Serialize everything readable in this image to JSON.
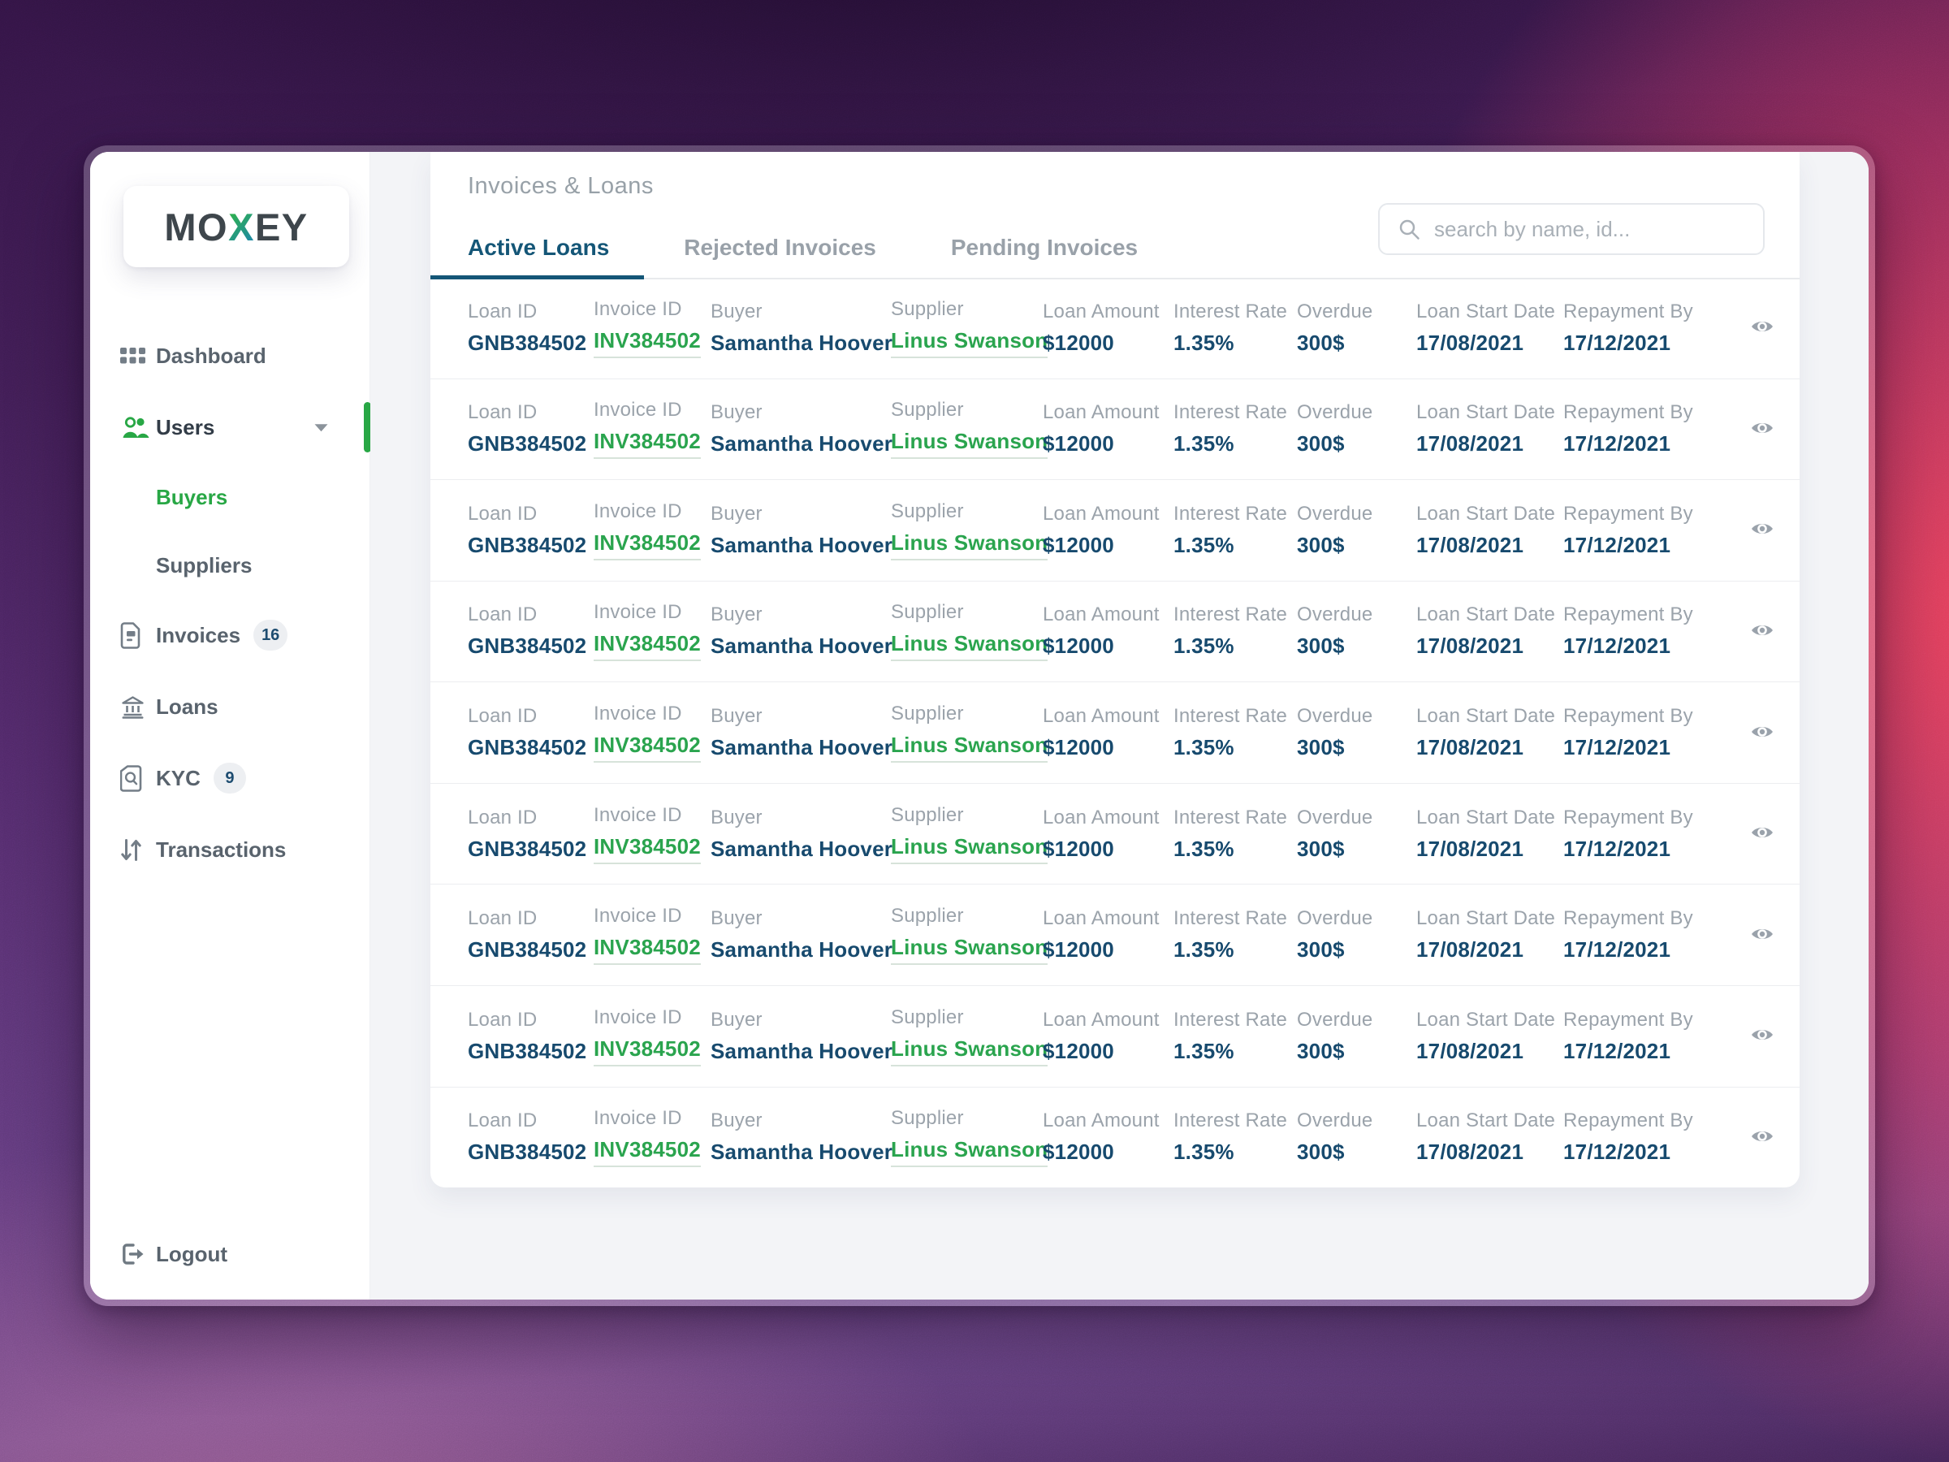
{
  "app": {
    "logo": {
      "part1": "MO",
      "accent": "X",
      "part2": "EY"
    }
  },
  "sidebar": {
    "items": [
      {
        "label": "Dashboard",
        "icon": "grid-icon",
        "active": false
      },
      {
        "label": "Users",
        "icon": "users-icon",
        "active": true,
        "expanded": true
      },
      {
        "label": "Buyers",
        "child_of": "Users",
        "active": true
      },
      {
        "label": "Suppliers",
        "child_of": "Users",
        "active": false
      },
      {
        "label": "Invoices",
        "icon": "invoice-icon",
        "badge": "16",
        "active": false
      },
      {
        "label": "Loans",
        "icon": "bank-icon",
        "active": false
      },
      {
        "label": "KYC",
        "icon": "document-search-icon",
        "badge": "9",
        "active": false
      },
      {
        "label": "Transactions",
        "icon": "transfer-arrows-icon",
        "active": false
      }
    ],
    "logout_label": "Logout"
  },
  "main": {
    "title": "Invoices & Loans",
    "tabs": [
      {
        "label": "Active Loans",
        "active": true
      },
      {
        "label": "Rejected Invoices",
        "active": false
      },
      {
        "label": "Pending Invoices",
        "active": false
      }
    ],
    "search": {
      "placeholder": "search by name, id..."
    }
  },
  "table": {
    "columns": [
      {
        "key": "loan_id",
        "label": "Loan ID",
        "style": "navy"
      },
      {
        "key": "invoice_id",
        "label": "Invoice ID",
        "style": "link"
      },
      {
        "key": "buyer",
        "label": "Buyer",
        "style": "navy"
      },
      {
        "key": "supplier",
        "label": "Supplier",
        "style": "link"
      },
      {
        "key": "loan_amount",
        "label": "Loan Amount",
        "style": "navy"
      },
      {
        "key": "interest_rate",
        "label": "Interest Rate",
        "style": "navy"
      },
      {
        "key": "overdue",
        "label": "Overdue",
        "style": "navy"
      },
      {
        "key": "loan_start_date",
        "label": "Loan Start Date",
        "style": "navy"
      },
      {
        "key": "repayment_by",
        "label": "Repayment By",
        "style": "navy"
      }
    ],
    "rows": [
      {
        "loan_id": "GNB384502",
        "invoice_id": "INV384502",
        "buyer": "Samantha Hoover",
        "supplier": "Linus Swanson",
        "loan_amount": "$12000",
        "interest_rate": "1.35%",
        "overdue": "300$",
        "loan_start_date": "17/08/2021",
        "repayment_by": "17/12/2021"
      },
      {
        "loan_id": "GNB384502",
        "invoice_id": "INV384502",
        "buyer": "Samantha Hoover",
        "supplier": "Linus Swanson",
        "loan_amount": "$12000",
        "interest_rate": "1.35%",
        "overdue": "300$",
        "loan_start_date": "17/08/2021",
        "repayment_by": "17/12/2021"
      },
      {
        "loan_id": "GNB384502",
        "invoice_id": "INV384502",
        "buyer": "Samantha Hoover",
        "supplier": "Linus Swanson",
        "loan_amount": "$12000",
        "interest_rate": "1.35%",
        "overdue": "300$",
        "loan_start_date": "17/08/2021",
        "repayment_by": "17/12/2021"
      },
      {
        "loan_id": "GNB384502",
        "invoice_id": "INV384502",
        "buyer": "Samantha Hoover",
        "supplier": "Linus Swanson",
        "loan_amount": "$12000",
        "interest_rate": "1.35%",
        "overdue": "300$",
        "loan_start_date": "17/08/2021",
        "repayment_by": "17/12/2021"
      },
      {
        "loan_id": "GNB384502",
        "invoice_id": "INV384502",
        "buyer": "Samantha Hoover",
        "supplier": "Linus Swanson",
        "loan_amount": "$12000",
        "interest_rate": "1.35%",
        "overdue": "300$",
        "loan_start_date": "17/08/2021",
        "repayment_by": "17/12/2021"
      },
      {
        "loan_id": "GNB384502",
        "invoice_id": "INV384502",
        "buyer": "Samantha Hoover",
        "supplier": "Linus Swanson",
        "loan_amount": "$12000",
        "interest_rate": "1.35%",
        "overdue": "300$",
        "loan_start_date": "17/08/2021",
        "repayment_by": "17/12/2021"
      },
      {
        "loan_id": "GNB384502",
        "invoice_id": "INV384502",
        "buyer": "Samantha Hoover",
        "supplier": "Linus Swanson",
        "loan_amount": "$12000",
        "interest_rate": "1.35%",
        "overdue": "300$",
        "loan_start_date": "17/08/2021",
        "repayment_by": "17/12/2021"
      },
      {
        "loan_id": "GNB384502",
        "invoice_id": "INV384502",
        "buyer": "Samantha Hoover",
        "supplier": "Linus Swanson",
        "loan_amount": "$12000",
        "interest_rate": "1.35%",
        "overdue": "300$",
        "loan_start_date": "17/08/2021",
        "repayment_by": "17/12/2021"
      },
      {
        "loan_id": "GNB384502",
        "invoice_id": "INV384502",
        "buyer": "Samantha Hoover",
        "supplier": "Linus Swanson",
        "loan_amount": "$12000",
        "interest_rate": "1.35%",
        "overdue": "300$",
        "loan_start_date": "17/08/2021",
        "repayment_by": "17/12/2021"
      }
    ]
  },
  "colors": {
    "accent_green": "#28a745",
    "navy_text": "#174a6e",
    "active_tab": "#145677",
    "label_gray": "#9ba3ab",
    "pink_glow": "#f2445a",
    "purple_base": "#522a6a"
  }
}
